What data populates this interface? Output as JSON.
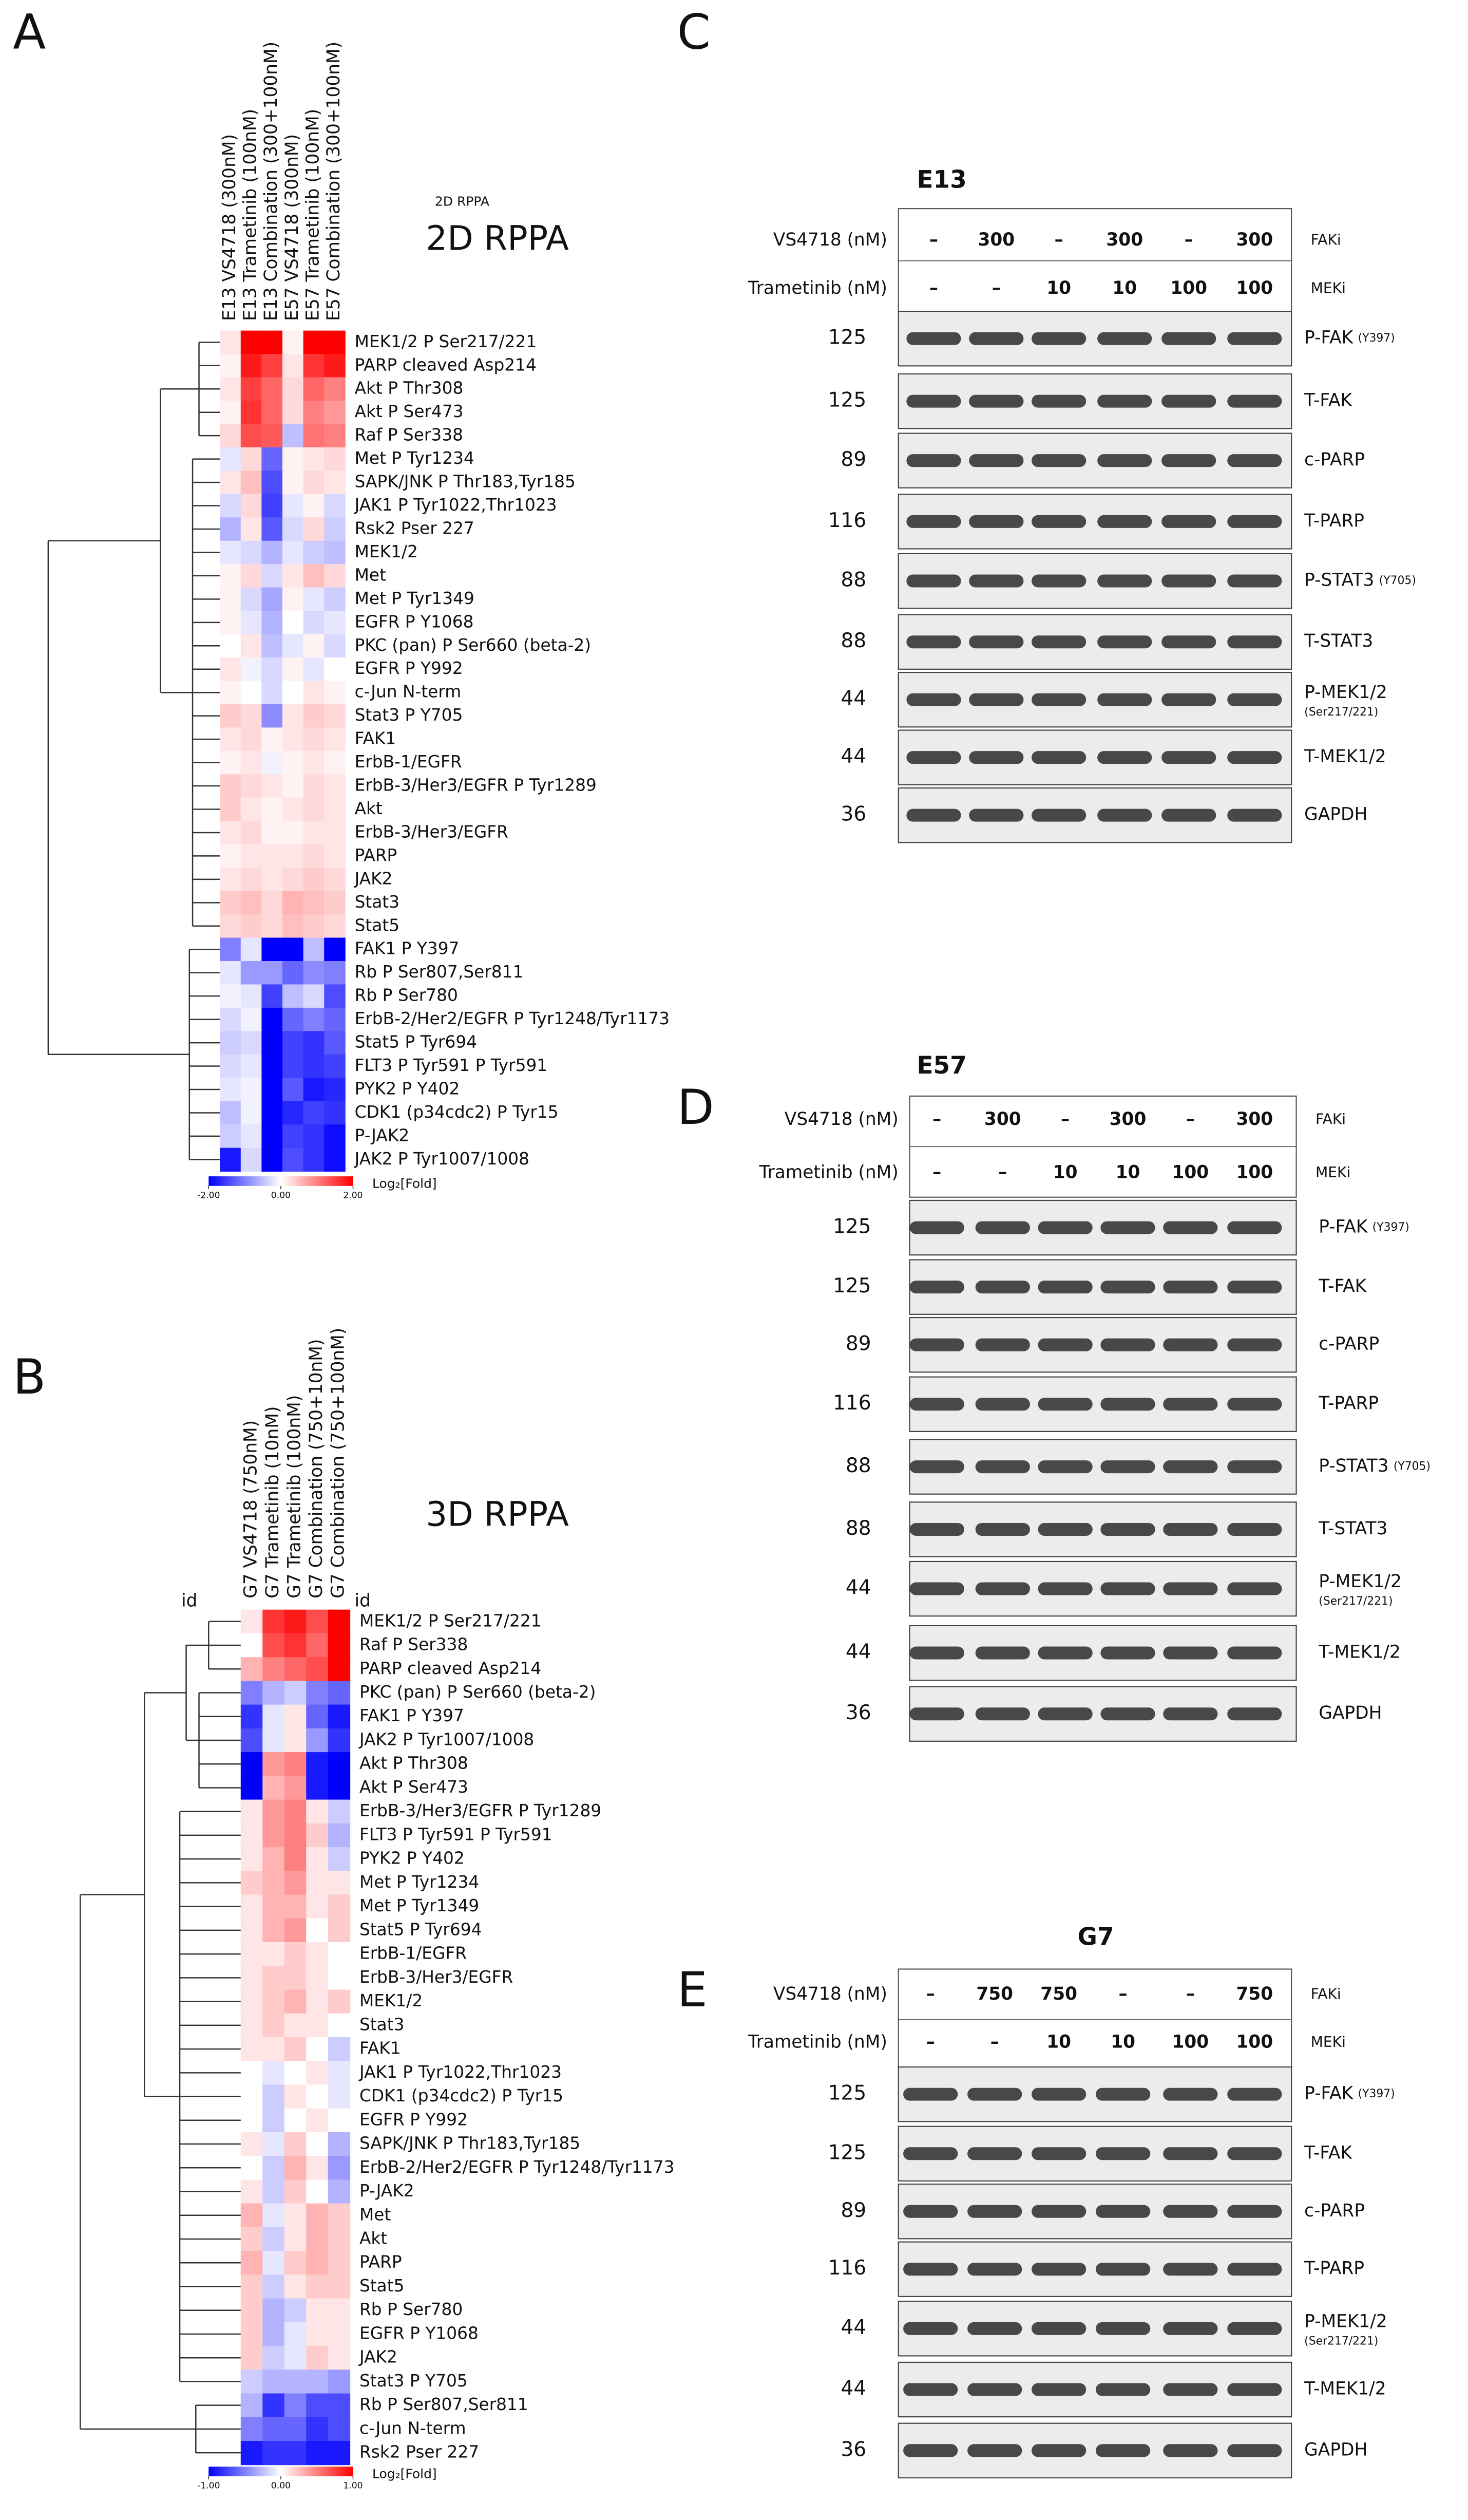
{
  "panels": [
    {
      "letter": "A",
      "small_title": "2D RPPA",
      "title": "2D RPPA",
      "columns": [
        "E13 VS4718 (300nM)",
        "E13 Trametinib (100nM)",
        "E13 Combination (300+100nM)",
        "E57 VS4718 (300nM)",
        "E57 Trametinib (100nM)",
        "E57 Combination (300+100nM)"
      ],
      "rows": [
        "MEK1/2 P Ser217/221",
        "PARP cleaved Asp214",
        "Akt P Thr308",
        "Akt P Ser473",
        "Raf P Ser338",
        "Met P Tyr1234",
        "SAPK/JNK P Thr183,Tyr185",
        "JAK1 P Tyr1022,Thr1023",
        "Rsk2 Pser 227",
        "MEK1/2",
        "Met",
        "Met P Tyr1349",
        "EGFR P Y1068",
        "PKC (pan) P Ser660 (beta-2)",
        "EGFR P Y992",
        "c-Jun N-term",
        "Stat3 P Y705",
        "FAK1",
        "ErbB-1/EGFR",
        "ErbB-3/Her3/EGFR P Tyr1289",
        "Akt",
        "ErbB-3/Her3/EGFR",
        "PARP",
        "JAK2",
        "Stat3",
        "Stat5",
        "FAK1 P Y397",
        "Rb P Ser807,Ser811",
        "Rb P Ser780",
        "ErbB-2/Her2/EGFR P Tyr1248/Tyr1173",
        "Stat5 P Tyr694",
        "FLT3 P Tyr591 P Tyr591",
        "PYK2 P Y402",
        "CDK1 (p34cdc2) P Tyr15",
        "P-JAK2",
        "JAK2 P Tyr1007/1008"
      ],
      "values": [
        [
          0.2,
          2,
          2,
          0.1,
          2,
          2
        ],
        [
          0.1,
          1.8,
          1.5,
          0.2,
          1.6,
          1.8
        ],
        [
          0.2,
          1.5,
          1.2,
          0.3,
          1.2,
          1.0
        ],
        [
          0.1,
          1.6,
          1.2,
          0.3,
          1.0,
          0.8
        ],
        [
          0.3,
          1.4,
          1.3,
          -0.5,
          1.1,
          1.0
        ],
        [
          -0.2,
          0.3,
          -1.2,
          0.1,
          0.2,
          0.3
        ],
        [
          0.2,
          0.5,
          -1.4,
          0.1,
          0.3,
          0.2
        ],
        [
          -0.3,
          0.3,
          -1.5,
          -0.2,
          0.1,
          -0.3
        ],
        [
          -0.6,
          0.2,
          -1.3,
          -0.3,
          0.3,
          -0.4
        ],
        [
          -0.2,
          -0.3,
          -0.6,
          -0.2,
          -0.4,
          -0.5
        ],
        [
          0.1,
          0.3,
          -0.3,
          0.2,
          0.5,
          0.3
        ],
        [
          0.1,
          -0.3,
          -0.7,
          0.1,
          -0.2,
          -0.4
        ],
        [
          0.1,
          -0.2,
          -0.6,
          0.0,
          -0.3,
          -0.2
        ],
        [
          0.0,
          0.2,
          -0.5,
          -0.2,
          0.1,
          -0.3
        ],
        [
          0.2,
          -0.1,
          -0.3,
          0.1,
          -0.2,
          0.0
        ],
        [
          0.1,
          0.0,
          -0.3,
          0.0,
          0.2,
          0.1
        ],
        [
          0.4,
          0.3,
          -0.9,
          0.2,
          0.4,
          0.3
        ],
        [
          0.2,
          0.3,
          0.1,
          0.2,
          0.3,
          0.2
        ],
        [
          0.1,
          0.2,
          -0.1,
          0.1,
          0.2,
          0.1
        ],
        [
          0.4,
          0.3,
          0.2,
          0.1,
          0.3,
          0.2
        ],
        [
          0.4,
          0.2,
          0.1,
          0.2,
          0.3,
          0.2
        ],
        [
          0.2,
          0.3,
          0.1,
          0.1,
          0.2,
          0.2
        ],
        [
          0.1,
          0.2,
          0.2,
          0.2,
          0.3,
          0.2
        ],
        [
          0.2,
          0.3,
          0.2,
          0.3,
          0.4,
          0.3
        ],
        [
          0.4,
          0.5,
          0.3,
          0.6,
          0.5,
          0.4
        ],
        [
          0.3,
          0.4,
          0.3,
          0.5,
          0.4,
          0.3
        ],
        [
          -1.0,
          -0.2,
          -2,
          -2,
          -0.5,
          -2
        ],
        [
          -0.2,
          -0.8,
          -0.8,
          -1.2,
          -0.9,
          -1.0
        ],
        [
          -0.1,
          -0.2,
          -1.5,
          -0.5,
          -0.3,
          -1.4
        ],
        [
          -0.3,
          -0.1,
          -2,
          -1.2,
          -1.0,
          -1.2
        ],
        [
          -0.4,
          -0.3,
          -2,
          -1.5,
          -1.6,
          -1.3
        ],
        [
          -0.3,
          -0.2,
          -2,
          -1.5,
          -1.6,
          -1.5
        ],
        [
          -0.2,
          -0.1,
          -2,
          -1.3,
          -1.8,
          -1.7
        ],
        [
          -0.5,
          -0.1,
          -2,
          -1.7,
          -1.5,
          -1.6
        ],
        [
          -0.4,
          -0.2,
          -2,
          -1.5,
          -1.6,
          -1.9
        ],
        [
          -1.8,
          -0.3,
          -2,
          -1.4,
          -1.6,
          -1.9
        ]
      ],
      "scale": {
        "min": -2,
        "max": 2,
        "ticks": [
          {
            "value": -2,
            "label": "-2.00"
          },
          {
            "value": 0,
            "label": "0.00"
          },
          {
            "value": 2,
            "label": "2.00"
          }
        ],
        "caption": "Log₂[Fold]"
      }
    },
    {
      "letter": "B",
      "title": "3D RPPA",
      "id_labels": [
        "id",
        "id"
      ],
      "columns": [
        "G7 VS4718 (750nM)",
        "G7 Trametinib (10nM)",
        "G7 Trametinib (100nM)",
        "G7 Combination (750+10nM)",
        "G7 Combination (750+100nM)"
      ],
      "rows": [
        "MEK1/2 P Ser217/221",
        "Raf P Ser338",
        "PARP cleaved Asp214",
        "PKC (pan) P Ser660 (beta-2)",
        "FAK1 P Y397",
        "JAK2 P Tyr1007/1008",
        "Akt P Thr308",
        "Akt P Ser473",
        "ErbB-3/Her3/EGFR P Tyr1289",
        "FLT3 P Tyr591 P Tyr591",
        "PYK2 P Y402",
        "Met P Tyr1234",
        "Met P Tyr1349",
        "Stat5 P Tyr694",
        "ErbB-1/EGFR",
        "ErbB-3/Her3/EGFR",
        "MEK1/2",
        "Stat3",
        "FAK1",
        "JAK1 P Tyr1022,Thr1023",
        "CDK1 (p34cdc2) P Tyr15",
        "EGFR P Y992",
        "SAPK/JNK P Thr183,Tyr185",
        "ErbB-2/Her2/EGFR P Tyr1248/Tyr1173",
        "P-JAK2",
        "Met",
        "Akt",
        "PARP",
        "Stat5",
        "Rb P Ser780",
        "EGFR P Y1068",
        "JAK2",
        "Stat3 P Y705",
        "Rb P Ser807,Ser811",
        "c-Jun N-term",
        "Rsk2 Pser 227"
      ],
      "values": [
        [
          0.1,
          0.8,
          0.9,
          0.7,
          1
        ],
        [
          0.0,
          0.7,
          0.8,
          0.6,
          1
        ],
        [
          0.3,
          0.5,
          0.6,
          0.7,
          1
        ],
        [
          -0.5,
          -0.3,
          -0.2,
          -0.5,
          -0.6
        ],
        [
          -0.8,
          -0.1,
          0.1,
          -0.6,
          -0.9
        ],
        [
          -0.7,
          -0.1,
          0.1,
          -0.4,
          -0.8
        ],
        [
          -1,
          0.4,
          0.5,
          -0.9,
          -1
        ],
        [
          -1,
          0.3,
          0.4,
          -0.9,
          -1
        ],
        [
          0.1,
          0.4,
          0.5,
          0.1,
          -0.2
        ],
        [
          0.1,
          0.4,
          0.5,
          0.2,
          -0.3
        ],
        [
          0.1,
          0.3,
          0.5,
          0.1,
          -0.2
        ],
        [
          0.2,
          0.3,
          0.4,
          0.1,
          0.1
        ],
        [
          0.1,
          0.3,
          0.3,
          0.1,
          0.2
        ],
        [
          0.1,
          0.3,
          0.4,
          0.0,
          0.2
        ],
        [
          0.1,
          0.1,
          0.2,
          0.1,
          0.0
        ],
        [
          0.1,
          0.2,
          0.2,
          0.1,
          0.0
        ],
        [
          0.1,
          0.2,
          0.3,
          0.1,
          0.2
        ],
        [
          0.1,
          0.2,
          0.1,
          0.1,
          0.0
        ],
        [
          0.1,
          0.1,
          0.2,
          0.0,
          -0.2
        ],
        [
          0.0,
          -0.1,
          0.0,
          0.1,
          -0.1
        ],
        [
          0.0,
          -0.2,
          0.1,
          0.0,
          -0.1
        ],
        [
          0.0,
          -0.2,
          0.0,
          0.1,
          0.0
        ],
        [
          0.1,
          -0.1,
          0.2,
          0.0,
          -0.3
        ],
        [
          0.0,
          -0.2,
          0.3,
          0.1,
          -0.4
        ],
        [
          0.1,
          -0.2,
          0.2,
          0.0,
          -0.3
        ],
        [
          0.3,
          -0.1,
          0.1,
          0.3,
          0.2
        ],
        [
          0.2,
          -0.2,
          0.1,
          0.3,
          0.2
        ],
        [
          0.3,
          -0.1,
          0.2,
          0.3,
          0.2
        ],
        [
          0.2,
          -0.2,
          0.1,
          0.2,
          0.2
        ],
        [
          0.2,
          -0.3,
          -0.2,
          0.1,
          0.1
        ],
        [
          0.2,
          -0.3,
          -0.1,
          0.1,
          0.1
        ],
        [
          0.2,
          -0.2,
          -0.1,
          0.2,
          0.1
        ],
        [
          -0.2,
          -0.3,
          -0.3,
          -0.3,
          -0.4
        ],
        [
          -0.3,
          -0.8,
          -0.5,
          -0.7,
          -0.7
        ],
        [
          -0.5,
          -0.6,
          -0.6,
          -0.8,
          -0.7
        ],
        [
          -0.9,
          -0.8,
          -0.8,
          -0.9,
          -0.9
        ]
      ],
      "scale": {
        "min": -1,
        "max": 1,
        "ticks": [
          {
            "value": -1,
            "label": "-1.00"
          },
          {
            "value": 0,
            "label": "0.00"
          },
          {
            "value": 1,
            "label": "1.00"
          }
        ],
        "caption": "Log₂[Fold]"
      }
    },
    {
      "letter": "C",
      "title": "E13",
      "treatments": [
        {
          "label": "VS4718 (nM)",
          "doses": [
            "–",
            300,
            "–",
            300,
            "–",
            300
          ],
          "group": "FAKi"
        },
        {
          "label": "Trametinib (nM)",
          "doses": [
            "–",
            "–",
            10,
            10,
            100,
            100
          ],
          "group": "MEKi"
        }
      ],
      "blots": [
        {
          "marker": 125,
          "label": "P-FAK",
          "note": "(Y397)"
        },
        {
          "marker": 125,
          "label": "T-FAK"
        },
        {
          "marker": 89,
          "label": "c-PARP"
        },
        {
          "marker": 116,
          "label": "T-PARP"
        },
        {
          "marker": 88,
          "label": "P-STAT3",
          "note": "(Y705)"
        },
        {
          "marker": 88,
          "label": "T-STAT3"
        },
        {
          "marker": 44,
          "label": "P-MEK1/2",
          "note_line2": "(Ser217/221)"
        },
        {
          "marker": 44,
          "label": "T-MEK1/2"
        },
        {
          "marker": 36,
          "label": "GAPDH"
        }
      ]
    },
    {
      "letter": "D",
      "title": "E57",
      "treatments": [
        {
          "label": "VS4718 (nM)",
          "doses": [
            "–",
            300,
            "–",
            300,
            "–",
            300
          ],
          "group": "FAKi"
        },
        {
          "label": "Trametinib (nM)",
          "doses": [
            "–",
            "–",
            10,
            10,
            100,
            100
          ],
          "group": "MEKi"
        }
      ],
      "blots": [
        {
          "marker": 125,
          "label": "P-FAK",
          "note": "(Y397)"
        },
        {
          "marker": 125,
          "label": "T-FAK"
        },
        {
          "marker": 89,
          "label": "c-PARP"
        },
        {
          "marker": 116,
          "label": "T-PARP"
        },
        {
          "marker": 88,
          "label": "P-STAT3",
          "note": "(Y705)"
        },
        {
          "marker": 88,
          "label": "T-STAT3"
        },
        {
          "marker": 44,
          "label": "P-MEK1/2",
          "note_line2": "(Ser217/221)"
        },
        {
          "marker": 44,
          "label": "T-MEK1/2"
        },
        {
          "marker": 36,
          "label": "GAPDH"
        }
      ]
    },
    {
      "letter": "E",
      "title": "G7",
      "treatments": [
        {
          "label": "VS4718 (nM)",
          "doses": [
            "–",
            750,
            750,
            "–",
            "–",
            750
          ],
          "group": "FAKi"
        },
        {
          "label": "Trametinib (nM)",
          "doses": [
            "–",
            "–",
            10,
            10,
            100,
            100
          ],
          "group": "MEKi"
        }
      ],
      "blots": [
        {
          "marker": 125,
          "label": "P-FAK",
          "note": "(Y397)"
        },
        {
          "marker": 125,
          "label": "T-FAK"
        },
        {
          "marker": 89,
          "label": "c-PARP"
        },
        {
          "marker": 116,
          "label": "T-PARP"
        },
        {
          "marker": 44,
          "label": "P-MEK1/2",
          "note_line2": "(Ser217/221)"
        },
        {
          "marker": 44,
          "label": "T-MEK1/2"
        },
        {
          "marker": 36,
          "label": "GAPDH"
        }
      ]
    }
  ]
}
